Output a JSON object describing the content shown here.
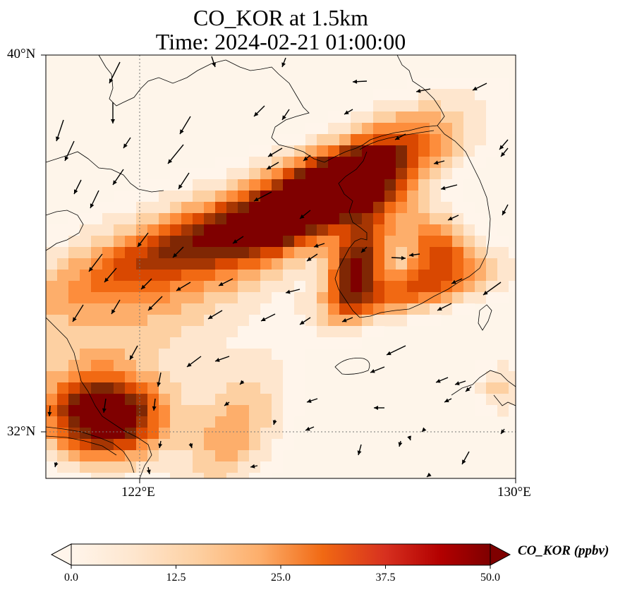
{
  "title_line1": "CO_KOR at 1.5km",
  "title_line2": "Time: 2024-02-21 01:00:00",
  "map": {
    "lat_range": [
      31.0,
      40.0
    ],
    "lon_range": [
      120.0,
      130.0
    ],
    "gridlines": {
      "lon": 122,
      "lat": 32,
      "style": "dotted"
    },
    "tick_labels": {
      "top_lat": "40°N",
      "lat_32": "32°N",
      "lon_122": "122°E",
      "lon_130": "130°E"
    },
    "fields": {
      "description_hint": "CO concentration at 1.5 km with wind vectors",
      "plumes": [
        {
          "name": "shanghai",
          "lon": 121.6,
          "lat": 32.2,
          "peak": 55
        },
        {
          "name": "north-china-band",
          "lon": 126.0,
          "lat": 36.2,
          "peak": 50
        },
        {
          "name": "korea-west-coast",
          "lon": 126.7,
          "lat": 35.5,
          "peak": 45
        },
        {
          "name": "korea-south",
          "lon": 127.5,
          "lat": 34.8,
          "peak": 30
        }
      ]
    }
  },
  "colorbar": {
    "label": "CO_KOR (ppbv)",
    "ticks": [
      "0.0",
      "12.5",
      "25.0",
      "37.5",
      "50.0"
    ],
    "min": 0,
    "max": 50,
    "colors": [
      "#fff5eb",
      "#fee6ce",
      "#fdd0a2",
      "#fdae6b",
      "#fd8d3c",
      "#f16913",
      "#d94801",
      "#a63603",
      "#7f2704",
      "#7f0000"
    ],
    "extend": "both"
  }
}
